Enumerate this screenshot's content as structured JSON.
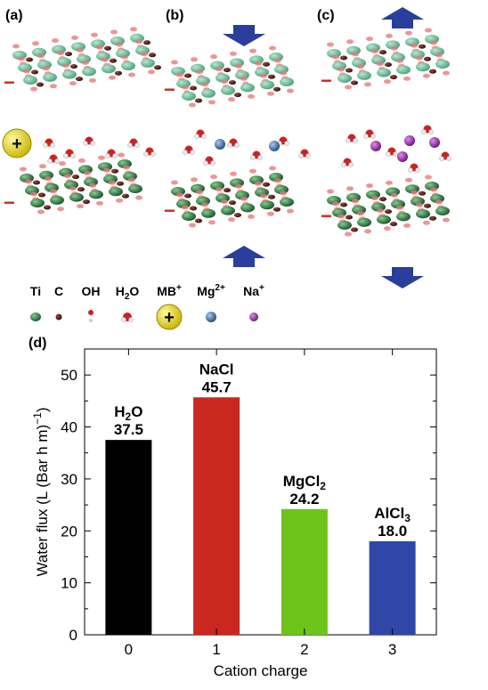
{
  "panels": {
    "a": "(a)",
    "b": "(b)",
    "c": "(c)",
    "d": "(d)"
  },
  "charge_minus": "−",
  "mb_plus": "+",
  "legend": [
    {
      "text": "Ti",
      "sup": "",
      "icon": "ti-atom-icon"
    },
    {
      "text": "C",
      "sup": "",
      "icon": "carbon-atom-icon"
    },
    {
      "text": "OH",
      "sup": "",
      "icon": "hydroxyl-icon"
    },
    {
      "text": "H",
      "sub": "2",
      "post": "O",
      "icon": "water-molecule-icon"
    },
    {
      "text": "MB",
      "sup": "+",
      "icon": "methylene-blue-cation-icon"
    },
    {
      "text": "Mg",
      "sup": "2+",
      "icon": "magnesium-ion-icon"
    },
    {
      "text": "Na",
      "sup": "+",
      "icon": "sodium-ion-icon"
    }
  ],
  "colors": {
    "ti": "#2f6a3f",
    "carbon": "#4a1a12",
    "oh_o": "#e03a3a",
    "h2o_o": "#cc2222",
    "mb": "#f0e020",
    "mg": "#3a6fa8",
    "na": "#9b2fb0",
    "arrow": "#2a3e9c",
    "top_layer": "#5cb892"
  },
  "chart_data": {
    "type": "bar",
    "categories": [
      "0",
      "1",
      "2",
      "3"
    ],
    "values": [
      37.5,
      45.7,
      24.2,
      18.0
    ],
    "value_labels": [
      "37.5",
      "45.7",
      "24.2",
      "18.0"
    ],
    "bar_names": [
      {
        "main": "H",
        "sub": "2",
        "post": "O"
      },
      {
        "main": "NaCl",
        "sub": "",
        "post": ""
      },
      {
        "main": "MgCl",
        "sub": "2",
        "post": ""
      },
      {
        "main": "AlCl",
        "sub": "3",
        "post": ""
      }
    ],
    "colors": [
      "#000000",
      "#c8281e",
      "#6cc41a",
      "#2f47a6"
    ],
    "xlabel": "Cation charge",
    "ylabel": "Water flux (L (Bar h m)",
    "ylabel_sup": "−1",
    "ylabel_close": ")",
    "ylim": [
      0,
      55
    ],
    "yticks": [
      0,
      10,
      20,
      30,
      40,
      50
    ],
    "ytick_labels": [
      "0",
      "10",
      "20",
      "30",
      "40",
      "50"
    ]
  }
}
